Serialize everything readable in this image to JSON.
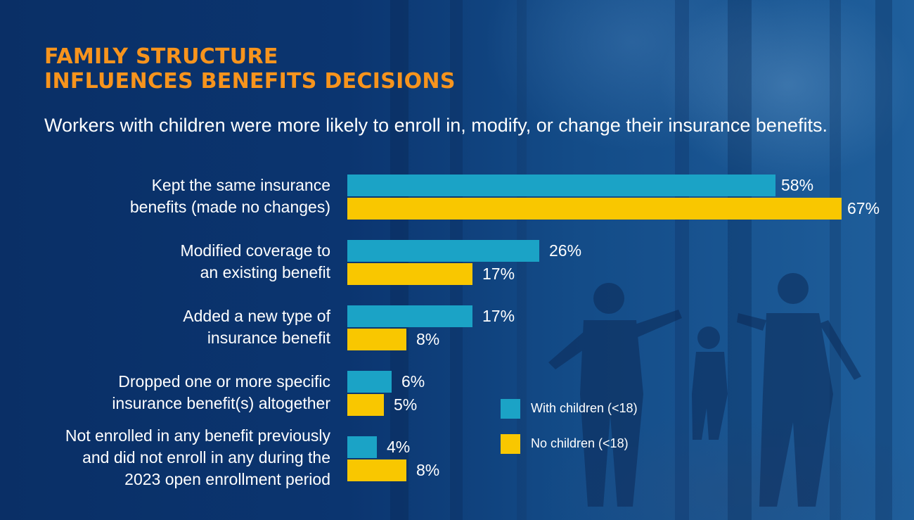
{
  "header": {
    "title_line1": "FAMILY STRUCTURE",
    "title_line2": "INFLUENCES BENEFITS DECISIONS",
    "subtitle": "Workers with children were more likely to enroll in, modify, or change their insurance benefits."
  },
  "colors": {
    "with_children": "#1ba3c6",
    "no_children": "#f9c700",
    "title": "#f7941d",
    "background": "#0b3570"
  },
  "chart_data": {
    "type": "bar",
    "orientation": "horizontal",
    "categories": [
      [
        "Kept the same insurance",
        "benefits (made no changes)"
      ],
      [
        "Modified coverage to",
        "an existing benefit"
      ],
      [
        "Added a new type of",
        "insurance benefit"
      ],
      [
        "Dropped one or more specific",
        "insurance benefit(s) altogether"
      ],
      [
        "Not enrolled in any benefit previously",
        "and  did not enroll in any during the",
        "2023 open enrollment period"
      ]
    ],
    "series": [
      {
        "name": "With children (<18)",
        "values": [
          58,
          26,
          17,
          6,
          4
        ],
        "labels": [
          "58%",
          "26%",
          "17%",
          "6%",
          "4%"
        ]
      },
      {
        "name": "No children (<18)",
        "values": [
          67,
          17,
          8,
          5,
          8
        ],
        "labels": [
          "67%",
          "17%",
          "8%",
          "5%",
          "8%"
        ]
      }
    ],
    "unit": "%",
    "xlim": [
      0,
      67
    ],
    "grid": false,
    "legend_position": "bottom-right"
  }
}
